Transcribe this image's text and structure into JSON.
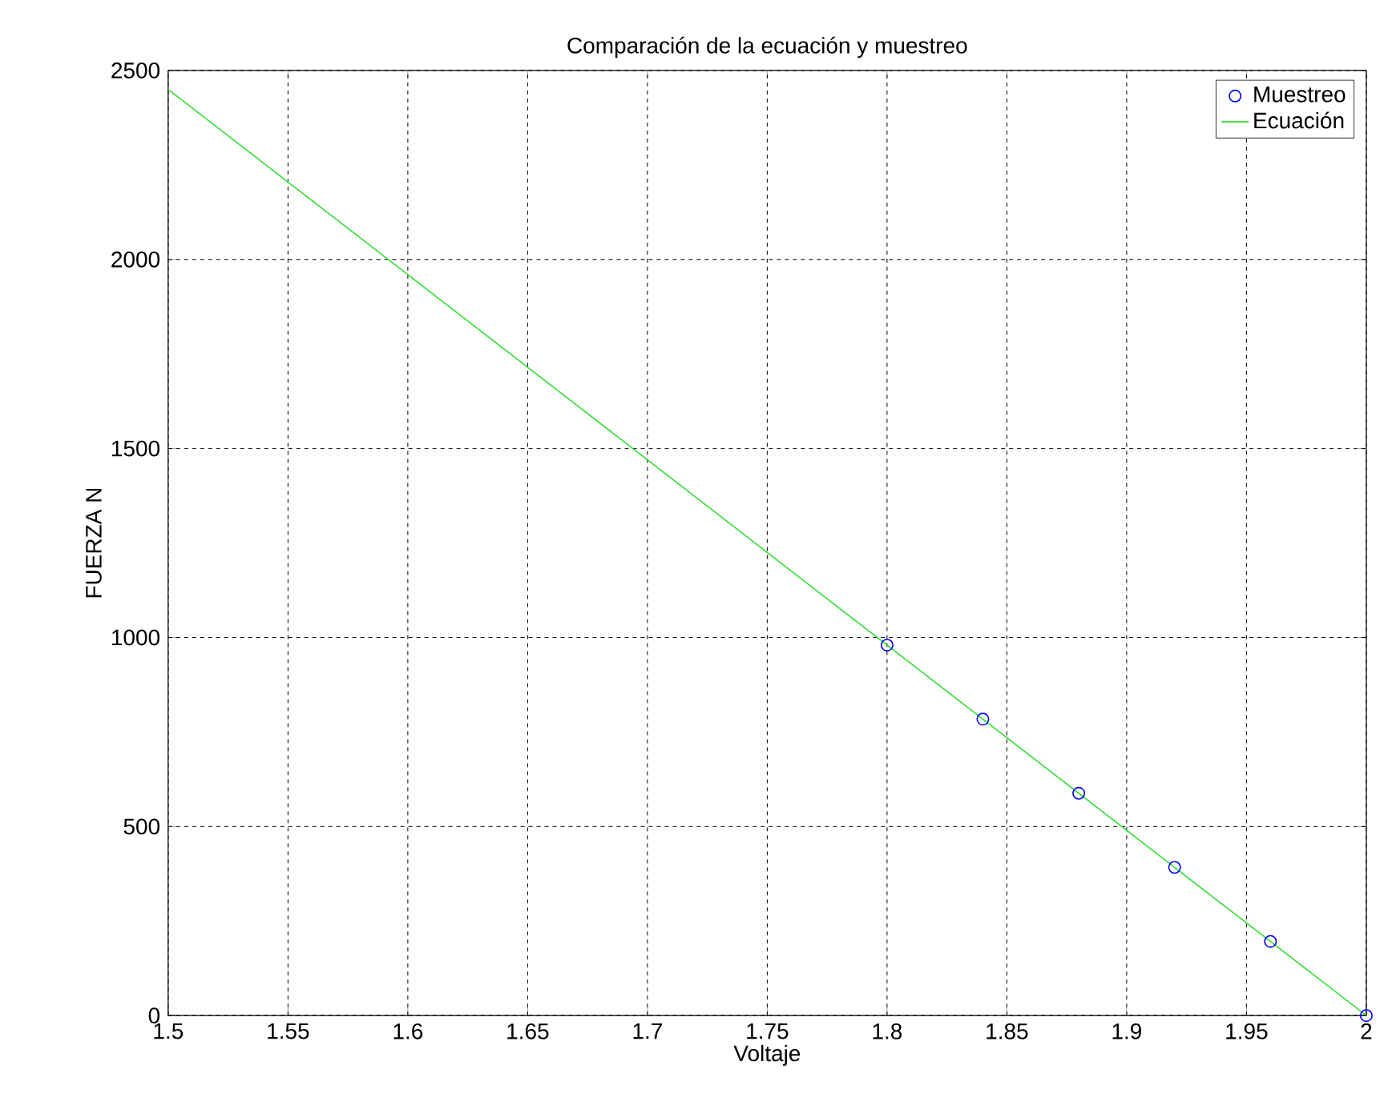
{
  "chart_data": {
    "type": "line",
    "title": "Comparación de la ecuación y muestreo",
    "xlabel": "Voltaje",
    "ylabel": "FUERZA N",
    "xlim": [
      1.5,
      2.0
    ],
    "ylim": [
      0,
      2500
    ],
    "xticks": [
      1.5,
      1.55,
      1.6,
      1.65,
      1.7,
      1.75,
      1.8,
      1.85,
      1.9,
      1.95,
      2
    ],
    "yticks": [
      0,
      500,
      1000,
      1500,
      2000,
      2500
    ],
    "grid": true,
    "legend": "top right",
    "series": [
      {
        "name": "Muestreo",
        "type": "scatter",
        "marker": "circle",
        "color": "#0000ff",
        "x": [
          1.8,
          1.84,
          1.88,
          1.92,
          1.96,
          2.0
        ],
        "values": [
          980,
          784,
          588,
          392,
          196,
          0
        ]
      },
      {
        "name": "Ecuación",
        "marker": "none",
        "line_style": "solid",
        "color": "#33dd33",
        "x": [
          1.5,
          2.0
        ],
        "values": [
          2450,
          0
        ]
      }
    ]
  }
}
